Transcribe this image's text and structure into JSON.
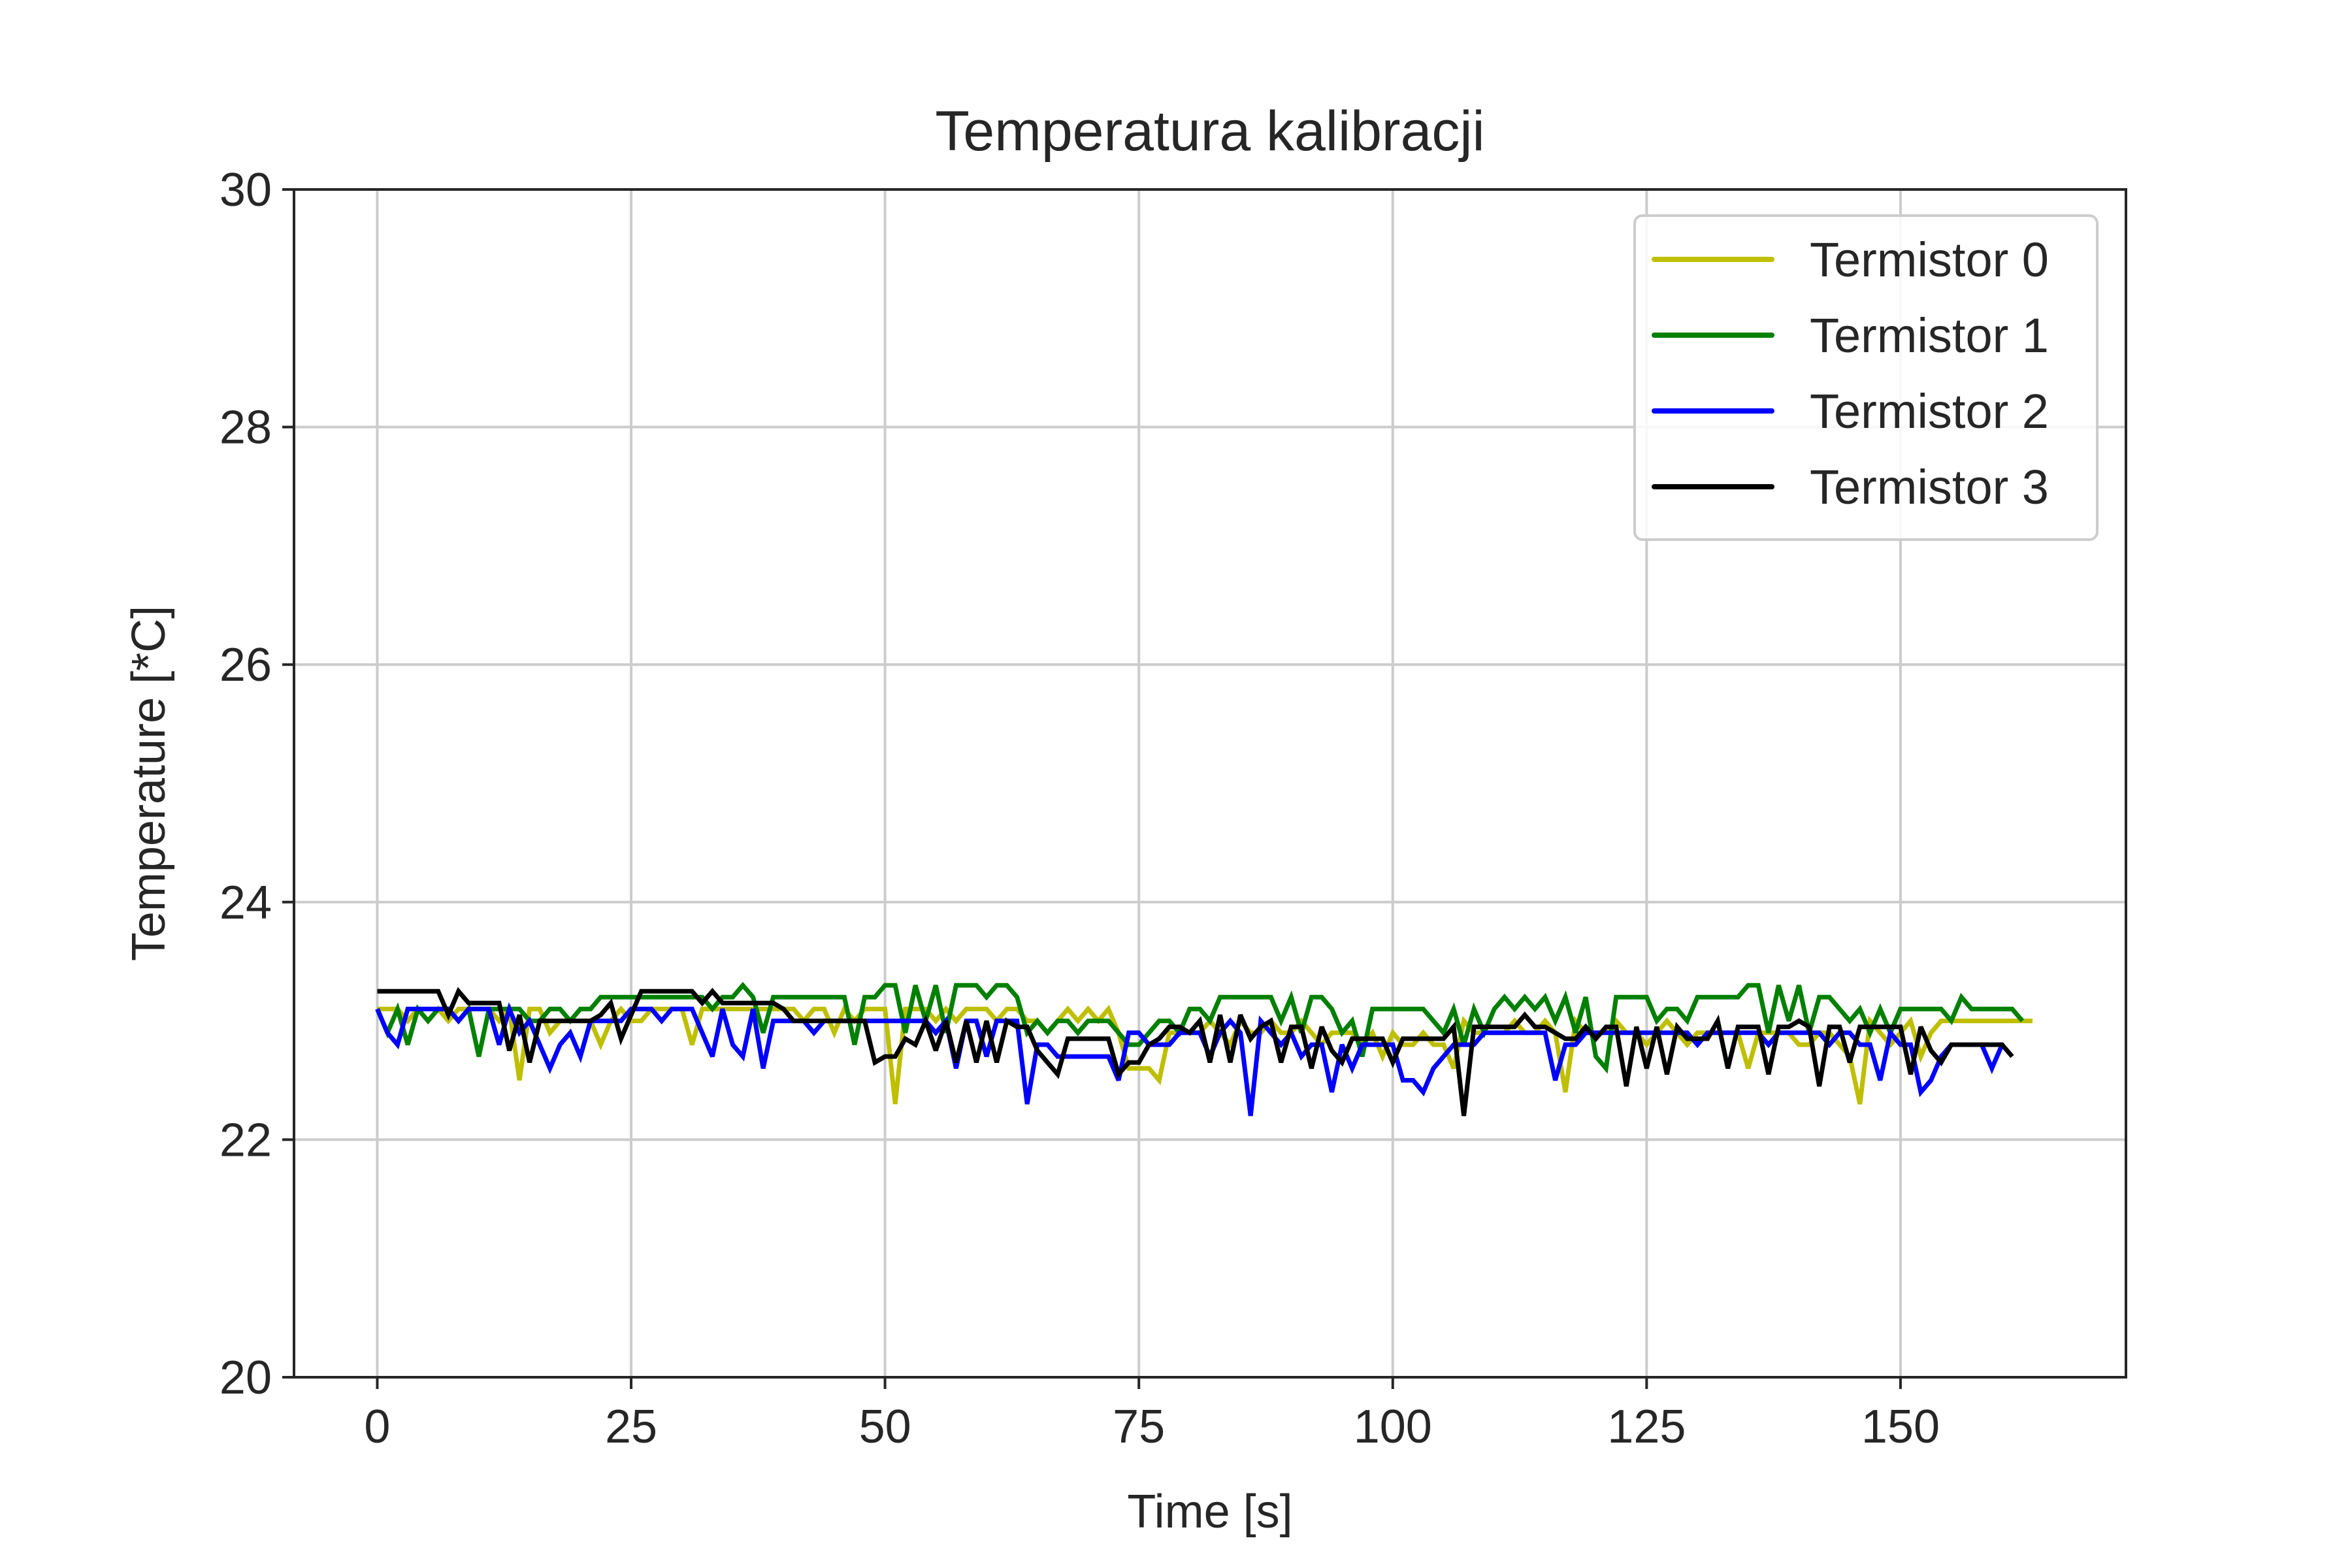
{
  "chart_data": {
    "type": "line",
    "title": "Temperatura kalibracji",
    "xlabel": "Time [s]",
    "ylabel": "Temperature [*C]",
    "xlim": [
      -8.2,
      172.2
    ],
    "ylim": [
      20,
      30
    ],
    "xticks": [
      0,
      25,
      50,
      75,
      100,
      125,
      150
    ],
    "yticks": [
      20,
      22,
      24,
      26,
      28,
      30
    ],
    "grid": true,
    "legend_position": "top-right",
    "series": [
      {
        "name": "Termistor 0",
        "color": "#bfbf00",
        "y": [
          23.1,
          23.1,
          23.1,
          23.0,
          23.1,
          23.0,
          23.1,
          23.0,
          23.1,
          23.1,
          23.1,
          23.1,
          23.0,
          23.1,
          22.5,
          23.1,
          23.1,
          22.9,
          23.0,
          23.0,
          23.0,
          23.0,
          22.8,
          23.0,
          23.1,
          23.0,
          23.0,
          23.1,
          23.1,
          23.1,
          23.1,
          22.8,
          23.1,
          23.1,
          23.1,
          23.1,
          23.1,
          23.1,
          23.1,
          23.1,
          23.1,
          23.1,
          23.0,
          23.1,
          23.1,
          22.9,
          23.1,
          23.0,
          23.1,
          23.1,
          23.1,
          22.3,
          23.1,
          23.1,
          23.1,
          23.0,
          23.1,
          23.0,
          23.1,
          23.1,
          23.1,
          23.0,
          23.1,
          23.1,
          23.0,
          23.0,
          22.9,
          23.0,
          23.1,
          23.0,
          23.1,
          23.0,
          23.1,
          22.9,
          22.6,
          22.6,
          22.6,
          22.5,
          22.9,
          22.9,
          22.9,
          22.9,
          23.0,
          22.9,
          22.8,
          23.0,
          22.9,
          22.9,
          23.0,
          22.9,
          22.9,
          23.0,
          22.9,
          22.8,
          22.9,
          22.9,
          22.9,
          22.8,
          22.9,
          22.7,
          22.9,
          22.8,
          22.8,
          22.9,
          22.8,
          22.8,
          22.6,
          23.0,
          22.9,
          22.9,
          22.9,
          22.9,
          23.0,
          22.9,
          22.9,
          23.0,
          22.9,
          22.4,
          23.0,
          22.9,
          22.9,
          22.9,
          23.0,
          22.9,
          22.9,
          22.8,
          22.9,
          23.0,
          22.9,
          22.8,
          22.9,
          22.9,
          22.9,
          22.9,
          22.9,
          22.6,
          22.9,
          22.9,
          22.9,
          22.9,
          22.8,
          22.8,
          22.9,
          22.9,
          22.8,
          22.7,
          22.3,
          23.0,
          22.9,
          22.8,
          22.9,
          23.0,
          22.7,
          22.9,
          23.0,
          23.0,
          23.0,
          23.0,
          23.0,
          23.0,
          23.0,
          23.0,
          23.0,
          23.0
        ]
      },
      {
        "name": "Termistor 1",
        "color": "#008000",
        "y": [
          23.1,
          22.9,
          23.1,
          22.8,
          23.1,
          23.0,
          23.1,
          23.1,
          23.0,
          23.1,
          22.7,
          23.1,
          23.1,
          23.1,
          23.1,
          23.0,
          23.0,
          23.1,
          23.1,
          23.0,
          23.1,
          23.1,
          23.2,
          23.2,
          23.2,
          23.2,
          23.2,
          23.2,
          23.2,
          23.2,
          23.2,
          23.2,
          23.2,
          23.1,
          23.2,
          23.2,
          23.3,
          23.2,
          22.9,
          23.2,
          23.2,
          23.2,
          23.2,
          23.2,
          23.2,
          23.2,
          23.2,
          22.8,
          23.2,
          23.2,
          23.3,
          23.3,
          22.9,
          23.3,
          23.0,
          23.3,
          22.9,
          23.3,
          23.3,
          23.3,
          23.2,
          23.3,
          23.3,
          23.2,
          22.9,
          23.0,
          22.9,
          23.0,
          23.0,
          22.9,
          23.0,
          23.0,
          23.0,
          22.9,
          22.8,
          22.8,
          22.9,
          23.0,
          23.0,
          22.9,
          23.1,
          23.1,
          23.0,
          23.2,
          23.2,
          23.2,
          23.2,
          23.2,
          23.2,
          23.0,
          23.2,
          22.9,
          23.2,
          23.2,
          23.1,
          22.9,
          23.0,
          22.7,
          23.1,
          23.1,
          23.1,
          23.1,
          23.1,
          23.1,
          23.0,
          22.9,
          23.1,
          22.8,
          23.1,
          22.9,
          23.1,
          23.2,
          23.1,
          23.2,
          23.1,
          23.2,
          23.0,
          23.2,
          22.9,
          23.2,
          22.7,
          22.6,
          23.2,
          23.2,
          23.2,
          23.2,
          23.0,
          23.1,
          23.1,
          23.0,
          23.2,
          23.2,
          23.2,
          23.2,
          23.2,
          23.3,
          23.3,
          22.9,
          23.3,
          23.0,
          23.3,
          22.9,
          23.2,
          23.2,
          23.1,
          23.0,
          23.1,
          22.9,
          23.1,
          22.9,
          23.1,
          23.1,
          23.1,
          23.1,
          23.1,
          23.0,
          23.2,
          23.1,
          23.1,
          23.1,
          23.1,
          23.1,
          23.0
        ]
      },
      {
        "name": "Termistor 2",
        "color": "#0000ff",
        "y": [
          23.1,
          22.9,
          22.8,
          23.1,
          23.1,
          23.1,
          23.1,
          23.1,
          23.0,
          23.1,
          23.1,
          23.1,
          22.8,
          23.1,
          22.9,
          23.0,
          22.8,
          22.6,
          22.8,
          22.9,
          22.7,
          23.0,
          23.0,
          23.0,
          23.0,
          23.1,
          23.1,
          23.1,
          23.0,
          23.1,
          23.1,
          23.1,
          22.9,
          22.7,
          23.1,
          22.8,
          22.7,
          23.1,
          22.6,
          23.0,
          23.0,
          23.0,
          23.0,
          22.9,
          23.0,
          23.0,
          23.0,
          23.0,
          23.0,
          23.0,
          23.0,
          23.0,
          23.0,
          23.0,
          23.0,
          22.9,
          23.0,
          22.6,
          23.0,
          23.0,
          22.7,
          23.0,
          23.0,
          23.0,
          22.3,
          22.8,
          22.8,
          22.7,
          22.7,
          22.7,
          22.7,
          22.7,
          22.7,
          22.5,
          22.9,
          22.9,
          22.8,
          22.8,
          22.8,
          22.9,
          22.9,
          22.9,
          22.7,
          22.9,
          23.0,
          22.9,
          22.2,
          23.0,
          22.9,
          22.8,
          22.9,
          22.7,
          22.8,
          22.8,
          22.4,
          22.8,
          22.6,
          22.8,
          22.8,
          22.8,
          22.8,
          22.5,
          22.5,
          22.4,
          22.6,
          22.7,
          22.8,
          22.8,
          22.8,
          22.9,
          22.9,
          22.9,
          22.9,
          22.9,
          22.9,
          22.9,
          22.5,
          22.8,
          22.8,
          22.9,
          22.9,
          22.9,
          22.9,
          22.9,
          22.9,
          22.9,
          22.9,
          22.9,
          22.9,
          22.9,
          22.8,
          22.9,
          22.9,
          22.9,
          22.9,
          22.9,
          22.9,
          22.8,
          22.9,
          22.9,
          22.9,
          22.9,
          22.9,
          22.8,
          22.9,
          22.9,
          22.8,
          22.8,
          22.5,
          22.9,
          22.8,
          22.8,
          22.4,
          22.5,
          22.7,
          22.8,
          22.8,
          22.8,
          22.8,
          22.6,
          22.8
        ]
      },
      {
        "name": "Termistor 3",
        "color": "#000000",
        "y": [
          23.25,
          23.25,
          23.25,
          23.25,
          23.25,
          23.25,
          23.25,
          23.05,
          23.25,
          23.15,
          23.15,
          23.15,
          23.15,
          22.75,
          23.05,
          22.65,
          23.0,
          23.0,
          23.0,
          23.0,
          23.0,
          23.0,
          23.05,
          23.15,
          22.85,
          23.05,
          23.25,
          23.25,
          23.25,
          23.25,
          23.25,
          23.25,
          23.15,
          23.25,
          23.15,
          23.15,
          23.15,
          23.15,
          23.15,
          23.15,
          23.1,
          23.0,
          23.0,
          23.0,
          23.0,
          23.0,
          23.0,
          23.0,
          23.0,
          22.65,
          22.7,
          22.7,
          22.85,
          22.8,
          23.0,
          22.75,
          23.0,
          22.65,
          23.0,
          22.65,
          23.0,
          22.65,
          23.0,
          22.95,
          22.95,
          22.75,
          22.65,
          22.55,
          22.85,
          22.85,
          22.85,
          22.85,
          22.85,
          22.55,
          22.65,
          22.65,
          22.8,
          22.85,
          22.95,
          22.95,
          22.9,
          23.0,
          22.65,
          23.05,
          22.65,
          23.05,
          22.85,
          22.95,
          23.0,
          22.65,
          22.95,
          22.95,
          22.6,
          22.95,
          22.75,
          22.65,
          22.85,
          22.85,
          22.85,
          22.85,
          22.65,
          22.85,
          22.85,
          22.85,
          22.85,
          22.85,
          22.95,
          22.2,
          22.95,
          22.95,
          22.95,
          22.95,
          22.95,
          23.05,
          22.95,
          22.95,
          22.9,
          22.85,
          22.85,
          22.95,
          22.85,
          22.95,
          22.95,
          22.45,
          22.95,
          22.6,
          22.95,
          22.55,
          22.95,
          22.85,
          22.85,
          22.85,
          23.0,
          22.6,
          22.95,
          22.95,
          22.95,
          22.55,
          22.95,
          22.95,
          23.0,
          22.95,
          22.45,
          22.95,
          22.95,
          22.65,
          22.95,
          22.95,
          22.95,
          22.95,
          22.95,
          22.55,
          22.95,
          22.75,
          22.65,
          22.8,
          22.8,
          22.8,
          22.8,
          22.8,
          22.8,
          22.7
        ]
      }
    ]
  }
}
